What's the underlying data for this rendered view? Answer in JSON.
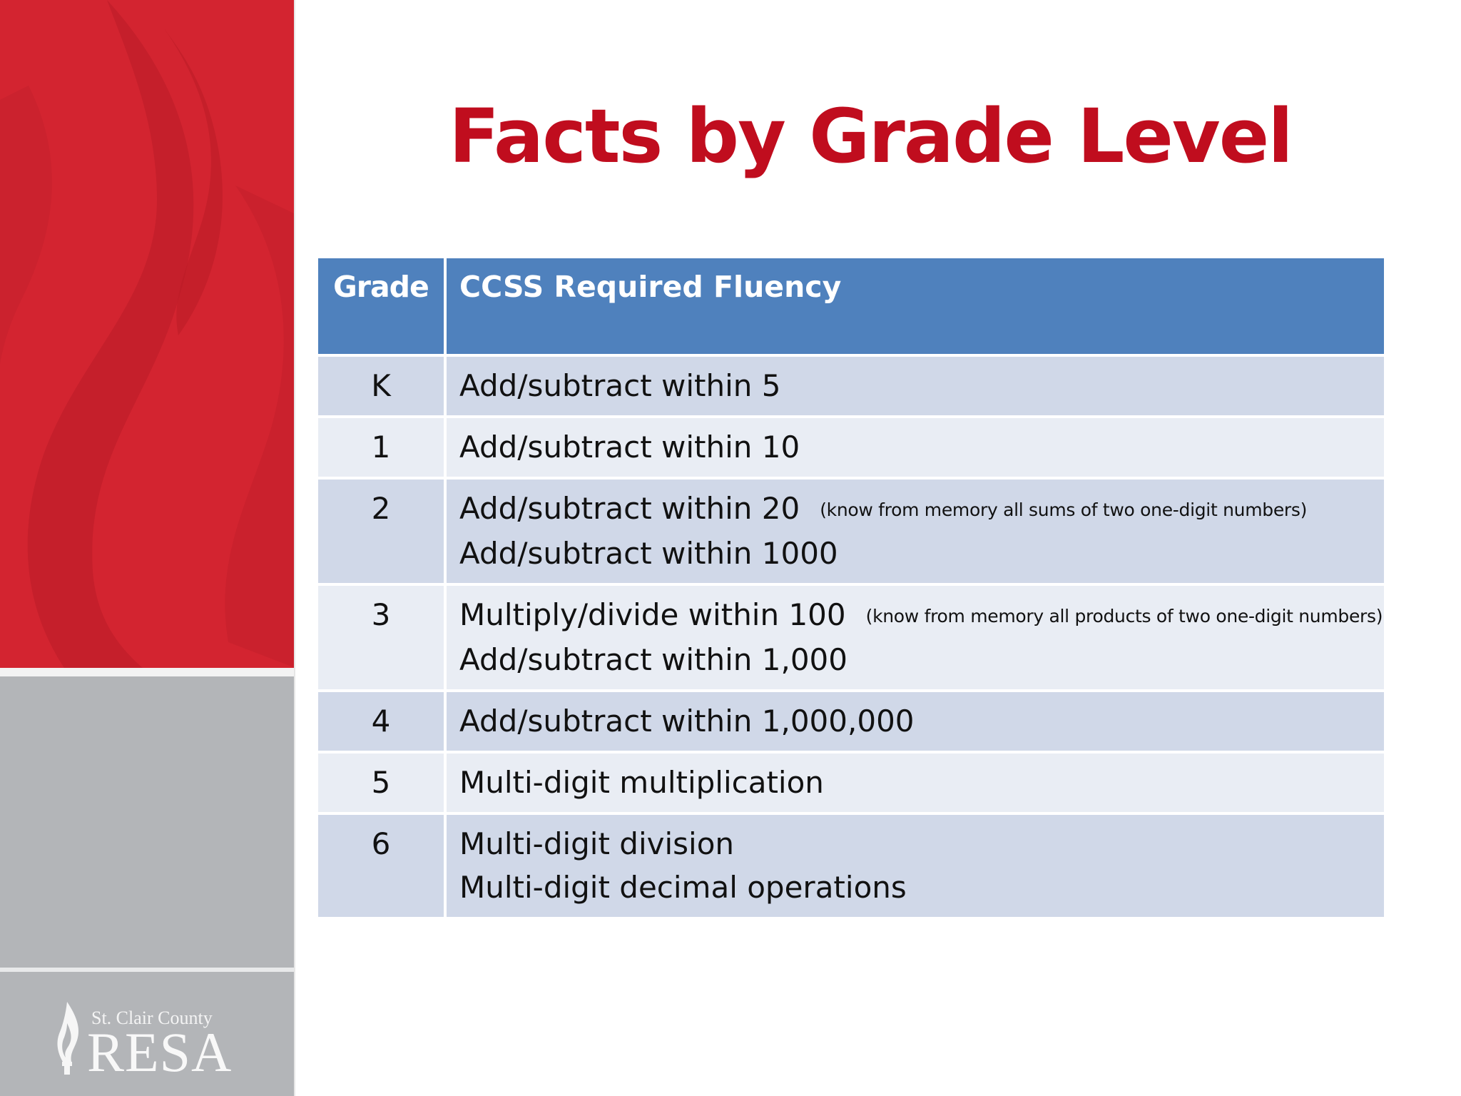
{
  "title": "Facts by Grade Level",
  "logo": {
    "county": "St. Clair County",
    "name": "RESA"
  },
  "table": {
    "headers": {
      "grade": "Grade",
      "fluency": "CCSS Required Fluency"
    },
    "rows": [
      {
        "grade": "K",
        "lines": [
          {
            "text": "Add/subtract within 5",
            "note": ""
          }
        ]
      },
      {
        "grade": "1",
        "lines": [
          {
            "text": "Add/subtract within 10",
            "note": ""
          }
        ]
      },
      {
        "grade": "2",
        "lines": [
          {
            "text": "Add/subtract within 20",
            "note": "(know from memory all sums of two one-digit numbers)"
          },
          {
            "text": "Add/subtract within 1000",
            "note": ""
          }
        ]
      },
      {
        "grade": "3",
        "lines": [
          {
            "text": "Multiply/divide within 100",
            "note": "(know from memory all products of two one-digit numbers)"
          },
          {
            "text": "Add/subtract within 1,000",
            "note": ""
          }
        ]
      },
      {
        "grade": "4",
        "lines": [
          {
            "text": "Add/subtract within 1,000,000",
            "note": ""
          }
        ]
      },
      {
        "grade": "5",
        "lines": [
          {
            "text": "Multi-digit multiplication",
            "note": ""
          }
        ]
      },
      {
        "grade": "6",
        "lines": [
          {
            "text": "Multi-digit division",
            "note": ""
          },
          {
            "text": "Multi-digit decimal operations",
            "note": ""
          }
        ]
      }
    ]
  },
  "colors": {
    "title": "#c00d1e",
    "header_bg": "#4f81bd",
    "row_odd": "#d0d8e8",
    "row_even": "#e9edf4",
    "panel_red": "#d32430",
    "panel_gray": "#b3b5b8"
  },
  "icons": {
    "logo_flame": "flame-icon"
  }
}
